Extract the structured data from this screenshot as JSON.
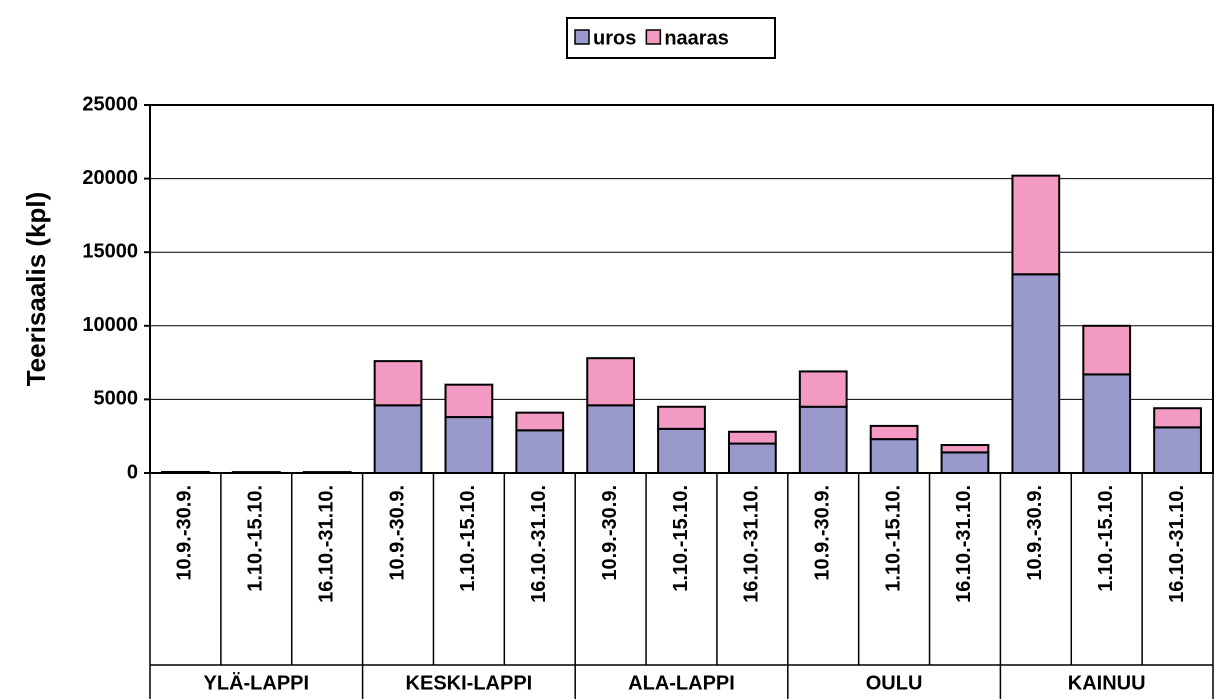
{
  "chart_data": {
    "type": "stacked_bar",
    "y_label": "Teerisaalis (kpl)",
    "categories": [
      "10.9.-30.9.",
      "1.10.-15.10.",
      "16.10.-31.10.",
      "10.9.-30.9.",
      "1.10.-15.10.",
      "16.10.-31.10.",
      "10.9.-30.9.",
      "1.10.-15.10.",
      "16.10.-31.10.",
      "10.9.-30.9.",
      "1.10.-15.10.",
      "16.10.-31.10.",
      "10.9.-30.9.",
      "1.10.-15.10.",
      "16.10.-31.10."
    ],
    "groups": [
      "YLÄ-LAPPI",
      "KESKI-LAPPI",
      "ALA-LAPPI",
      "OULU",
      "KAINUU"
    ],
    "series": [
      {
        "name": "uros",
        "color": "#9999cc",
        "values": [
          50,
          40,
          40,
          4600,
          3800,
          2900,
          4600,
          3000,
          2000,
          4500,
          2300,
          1400,
          13500,
          6700,
          3100
        ]
      },
      {
        "name": "naaras",
        "color": "#f29ac2",
        "values": [
          20,
          20,
          20,
          3000,
          2200,
          1200,
          3200,
          1500,
          800,
          2400,
          900,
          500,
          6700,
          3300,
          1300
        ]
      }
    ],
    "ylim": [
      0,
      25000
    ],
    "yticks": [
      0,
      5000,
      10000,
      15000,
      20000,
      25000
    ],
    "grid": true,
    "legend": "top"
  }
}
